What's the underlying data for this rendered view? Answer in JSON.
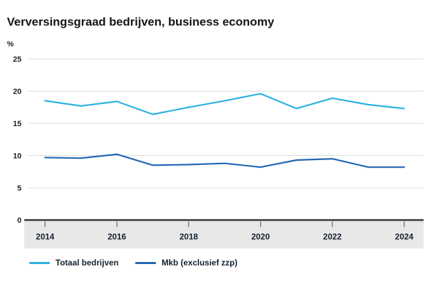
{
  "title": "Verversingsgraad bedrijven, business economy",
  "y_axis_unit": "%",
  "legend": [
    {
      "label": "Totaal bedrijven",
      "color": "#29b2e0"
    },
    {
      "label": "Mkb (exclusief zzp)",
      "color": "#2166b2"
    }
  ],
  "chart_data": {
    "type": "line",
    "x": [
      2014,
      2015,
      2016,
      2017,
      2018,
      2019,
      2020,
      2021,
      2022,
      2023,
      2024
    ],
    "series": [
      {
        "name": "Totaal bedrijven",
        "color": "#29b2e0",
        "values": [
          18.5,
          17.7,
          18.4,
          16.4,
          17.5,
          18.5,
          19.6,
          17.3,
          18.9,
          17.9,
          17.3
        ]
      },
      {
        "name": "Mkb (exclusief zzp)",
        "color": "#2166b2",
        "values": [
          9.7,
          9.6,
          10.2,
          8.5,
          8.6,
          8.8,
          8.2,
          9.3,
          9.5,
          8.2,
          8.2
        ]
      }
    ],
    "title": "Verversingsgraad bedrijven, business economy",
    "xlabel": "",
    "ylabel": "%",
    "ylim": [
      0,
      25
    ],
    "yticks": [
      0,
      5,
      10,
      15,
      20,
      25
    ],
    "xticks": [
      2014,
      2016,
      2018,
      2020,
      2022,
      2024
    ],
    "grid": true,
    "legend_position": "bottom"
  },
  "colors": {
    "gridline": "#dcdcdc",
    "axis_line": "#55565a",
    "tick_mark": "#7c7d80",
    "axis_band": "#e8e8e8",
    "tick_text": "#1a1d21",
    "year_text": "#14202e"
  }
}
